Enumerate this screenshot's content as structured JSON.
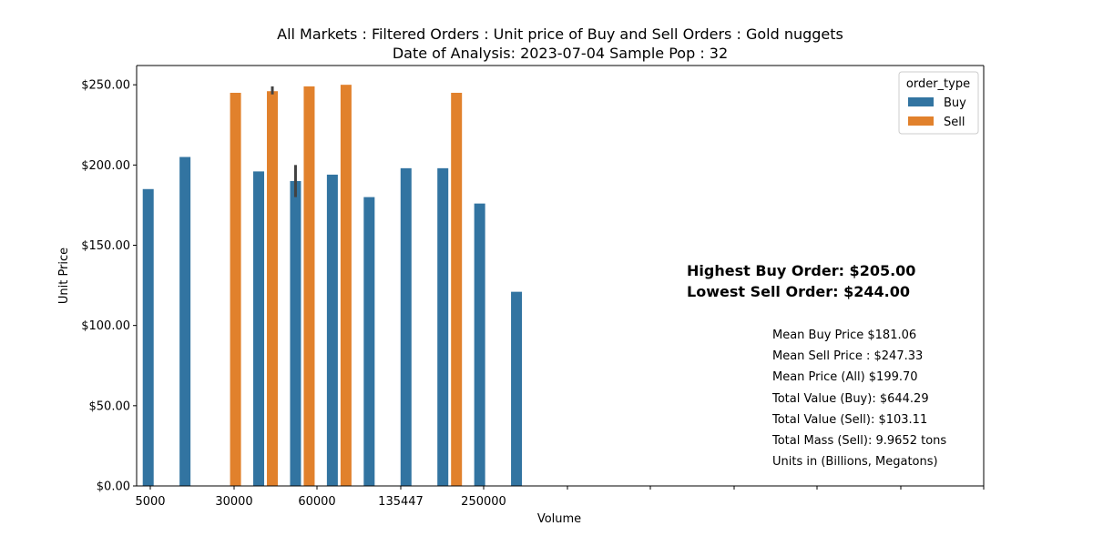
{
  "chart_data": {
    "type": "bar",
    "title_line1": "All Markets : Filtered Orders : Unit price of Buy and Sell Orders : Gold nuggets",
    "title_line2": "Date of Analysis: 2023-07-04 Sample Pop : 32",
    "xlabel": "Volume",
    "ylabel": "Unit Price",
    "ylim": [
      0,
      262
    ],
    "yticks": [
      {
        "value": 0,
        "label": "$0.00"
      },
      {
        "value": 50,
        "label": "$50.00"
      },
      {
        "value": 100,
        "label": "$100.00"
      },
      {
        "value": 150,
        "label": "$150.00"
      },
      {
        "value": 200,
        "label": "$200.00"
      },
      {
        "value": 250,
        "label": "$250.00"
      }
    ],
    "categories": [
      "5000",
      "",
      "",
      "30000",
      "",
      "",
      "60000",
      "",
      "",
      "135447",
      "",
      "",
      "250000",
      "",
      "",
      "",
      "",
      "",
      "",
      "",
      "",
      "",
      ""
    ],
    "series": [
      {
        "name": "Buy",
        "color": "#3274a1",
        "values": [
          185,
          205,
          null,
          196,
          190,
          194,
          180,
          198,
          198,
          176,
          121,
          null,
          null,
          null,
          null,
          null,
          null,
          null,
          null,
          null,
          null,
          null,
          null
        ],
        "errors": [
          null,
          null,
          null,
          null,
          [
            180,
            200
          ],
          null,
          null,
          null,
          null,
          null,
          null,
          null,
          null,
          null,
          null,
          null,
          null,
          null,
          null,
          null,
          null,
          null,
          null
        ]
      },
      {
        "name": "Sell",
        "color": "#e1812c",
        "values": [
          null,
          null,
          245,
          246,
          249,
          250,
          null,
          null,
          245,
          null,
          null,
          null,
          null,
          null,
          null,
          null,
          null,
          null,
          null,
          null,
          null,
          null,
          null
        ],
        "errors": [
          null,
          null,
          null,
          [
            244,
            249
          ],
          null,
          null,
          null,
          null,
          null,
          null,
          null,
          null,
          null,
          null,
          null,
          null,
          null,
          null,
          null,
          null,
          null,
          null,
          null
        ]
      }
    ],
    "legend": {
      "title": "order_type",
      "placement": "top-right"
    },
    "grid": false,
    "annotations_big": [
      "Highest Buy Order: $205.00",
      "Lowest Sell Order: $244.00"
    ],
    "annotations_small": [
      "Mean Buy Price $181.06",
      "Mean Sell Price : $247.33",
      "Mean Price (All) $199.70",
      "Total Value (Buy): $644.29",
      "Total Value (Sell): $103.11",
      "Total Mass (Sell): 9.9652 tons",
      "Units in (Billions, Megatons)"
    ]
  }
}
